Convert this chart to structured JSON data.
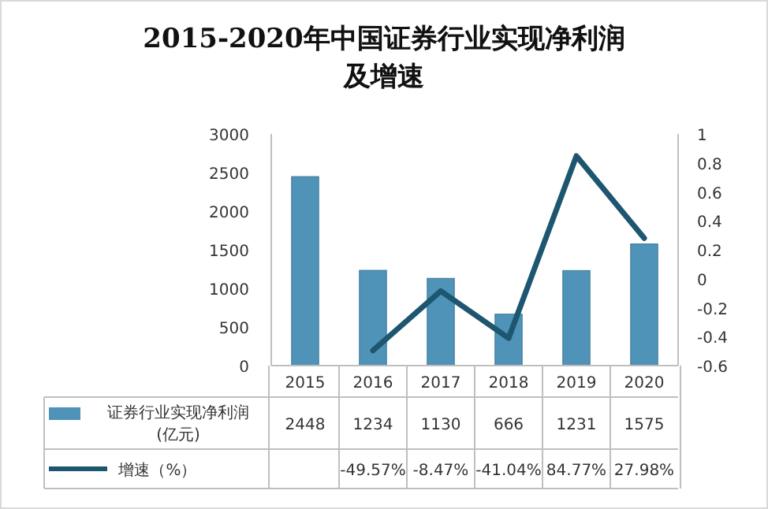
{
  "chart_data": {
    "type": "bar",
    "title": "2015-2020年中国证券行业实现净利润及增速",
    "categories": [
      "2015",
      "2016",
      "2017",
      "2018",
      "2019",
      "2020"
    ],
    "series": [
      {
        "name": "证券行业实现净利润(亿元)",
        "type": "bar",
        "color": "#4f93b8",
        "values": [
          2448,
          1234,
          1130,
          666,
          1231,
          1575
        ],
        "value_labels": [
          "2448",
          "1234",
          "1130",
          "666",
          "1231",
          "1575"
        ]
      },
      {
        "name": "增速（%）",
        "type": "line",
        "axis": "y2",
        "color": "#1d5670",
        "values": [
          null,
          -0.4957,
          -0.0847,
          -0.4104,
          0.8477,
          0.2798
        ],
        "value_labels": [
          null,
          "-49.57%",
          "-8.47%",
          "-41.04%",
          "84.77%",
          "27.98%"
        ]
      }
    ],
    "ylim": [
      0,
      3000
    ],
    "yticks": [
      0,
      500,
      1000,
      1500,
      2000,
      2500,
      3000
    ],
    "y2lim": [
      -0.6,
      1
    ],
    "y2ticks": [
      -0.6,
      -0.4,
      -0.2,
      0,
      0.2,
      0.4,
      0.6,
      0.8,
      1
    ],
    "legend": "bottom left",
    "line_style": "solid",
    "marker": "none"
  }
}
